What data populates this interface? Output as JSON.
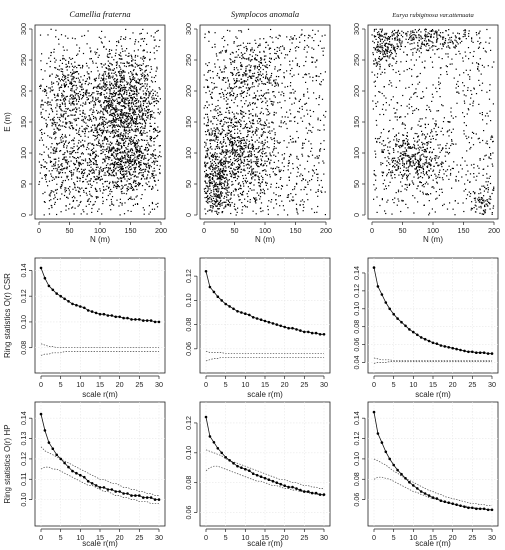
{
  "row_labels": {
    "csr_ylabel": "Ring statistics O(r)  CSR",
    "hp_ylabel": "Ring statistics O(r)  HP"
  },
  "chart_data": [
    {
      "type": "scatter",
      "row": 0,
      "col": 0,
      "title": "Camellia fraterna",
      "xlabel": "N (m)",
      "ylabel": "E (m)",
      "xlim": [
        0,
        200
      ],
      "ylim": [
        0,
        300
      ],
      "xticks": [
        0,
        50,
        100,
        150,
        200
      ],
      "yticks": [
        0,
        50,
        100,
        150,
        200,
        250,
        300
      ],
      "n_points": 3200,
      "density_clusters": [
        {
          "x": 140,
          "y": 175,
          "sx": 32,
          "sy": 45,
          "w": 0.4
        },
        {
          "x": 140,
          "y": 80,
          "sx": 35,
          "sy": 30,
          "w": 0.2
        },
        {
          "x": 45,
          "y": 85,
          "sx": 30,
          "sy": 45,
          "w": 0.15
        },
        {
          "x": 50,
          "y": 205,
          "sx": 25,
          "sy": 30,
          "w": 0.1
        }
      ]
    },
    {
      "type": "scatter",
      "row": 0,
      "col": 1,
      "title": "Symplocos anomala",
      "xlabel": "N (m)",
      "ylabel": "",
      "xlim": [
        0,
        200
      ],
      "ylim": [
        0,
        300
      ],
      "xticks": [
        0,
        50,
        100,
        150,
        200
      ],
      "yticks": [
        0,
        50,
        100,
        150,
        200,
        250,
        300
      ],
      "n_points": 2300,
      "density_clusters": [
        {
          "x": 50,
          "y": 100,
          "sx": 40,
          "sy": 45,
          "w": 0.45
        },
        {
          "x": 80,
          "y": 230,
          "sx": 30,
          "sy": 25,
          "w": 0.12
        },
        {
          "x": 20,
          "y": 40,
          "sx": 15,
          "sy": 25,
          "w": 0.1
        }
      ]
    },
    {
      "type": "scatter",
      "row": 0,
      "col": 2,
      "title": "Eurya rubiginosa var.attenuata",
      "xlabel": "N (m)",
      "ylabel": "",
      "xlim": [
        0,
        200
      ],
      "ylim": [
        0,
        300
      ],
      "xticks": [
        0,
        50,
        100,
        150,
        200
      ],
      "yticks": [
        0,
        50,
        100,
        150,
        200,
        250,
        300
      ],
      "n_points": 1600,
      "density_clusters": [
        {
          "x": 20,
          "y": 270,
          "sx": 15,
          "sy": 20,
          "w": 0.14
        },
        {
          "x": 100,
          "y": 285,
          "sx": 40,
          "sy": 10,
          "w": 0.14
        },
        {
          "x": 70,
          "y": 90,
          "sx": 30,
          "sy": 25,
          "w": 0.25
        },
        {
          "x": 185,
          "y": 15,
          "sx": 10,
          "sy": 15,
          "w": 0.06
        }
      ]
    },
    {
      "type": "line",
      "row": 1,
      "col": 0,
      "xlabel": "scale r(m)",
      "ylabel": "Ring statistics O(r)  CSR",
      "xlim": [
        0,
        30
      ],
      "ylim": [
        0.065,
        0.145
      ],
      "xticks": [
        0,
        5,
        10,
        15,
        20,
        25,
        30
      ],
      "yticks": [
        0.08,
        0.1,
        0.12,
        0.14
      ],
      "x": [
        0,
        1,
        2,
        3,
        4,
        5,
        6,
        7,
        8,
        9,
        10,
        11,
        12,
        13,
        14,
        15,
        16,
        17,
        18,
        19,
        20,
        21,
        22,
        23,
        24,
        25,
        26,
        27,
        28,
        29,
        30
      ],
      "observed": [
        0.142,
        0.134,
        0.128,
        0.125,
        0.122,
        0.12,
        0.118,
        0.116,
        0.114,
        0.113,
        0.112,
        0.111,
        0.109,
        0.108,
        0.107,
        0.106,
        0.106,
        0.105,
        0.105,
        0.104,
        0.104,
        0.103,
        0.103,
        0.102,
        0.102,
        0.102,
        0.101,
        0.101,
        0.101,
        0.1,
        0.1
      ],
      "env_upper": [
        0.083,
        0.082,
        0.081,
        0.081,
        0.08,
        0.08,
        0.08,
        0.08,
        0.08,
        0.08,
        0.08,
        0.08,
        0.08,
        0.08,
        0.08,
        0.08,
        0.08,
        0.08,
        0.08,
        0.08,
        0.08,
        0.08,
        0.08,
        0.08,
        0.08,
        0.08,
        0.08,
        0.08,
        0.08,
        0.08,
        0.08
      ],
      "env_lower": [
        0.074,
        0.075,
        0.075,
        0.076,
        0.076,
        0.076,
        0.077,
        0.077,
        0.077,
        0.077,
        0.077,
        0.077,
        0.077,
        0.077,
        0.077,
        0.077,
        0.077,
        0.077,
        0.077,
        0.077,
        0.077,
        0.077,
        0.077,
        0.077,
        0.077,
        0.077,
        0.077,
        0.077,
        0.077,
        0.077,
        0.077
      ]
    },
    {
      "type": "line",
      "row": 1,
      "col": 1,
      "xlabel": "scale r(m)",
      "ylabel": "",
      "xlim": [
        0,
        30
      ],
      "ylim": [
        0.045,
        0.13
      ],
      "xticks": [
        0,
        5,
        10,
        15,
        20,
        25,
        30
      ],
      "yticks": [
        0.06,
        0.08,
        0.1,
        0.12
      ],
      "x": [
        0,
        1,
        2,
        3,
        4,
        5,
        6,
        7,
        8,
        9,
        10,
        11,
        12,
        13,
        14,
        15,
        16,
        17,
        18,
        19,
        20,
        21,
        22,
        23,
        24,
        25,
        26,
        27,
        28,
        29,
        30
      ],
      "observed": [
        0.124,
        0.111,
        0.107,
        0.103,
        0.1,
        0.097,
        0.095,
        0.093,
        0.091,
        0.09,
        0.089,
        0.088,
        0.086,
        0.085,
        0.084,
        0.083,
        0.082,
        0.081,
        0.08,
        0.079,
        0.078,
        0.077,
        0.077,
        0.076,
        0.075,
        0.074,
        0.074,
        0.073,
        0.073,
        0.072,
        0.072
      ],
      "env_upper": [
        0.058,
        0.057,
        0.057,
        0.057,
        0.057,
        0.056,
        0.056,
        0.056,
        0.056,
        0.056,
        0.056,
        0.056,
        0.056,
        0.056,
        0.056,
        0.056,
        0.056,
        0.056,
        0.056,
        0.056,
        0.056,
        0.056,
        0.056,
        0.056,
        0.056,
        0.056,
        0.056,
        0.056,
        0.056,
        0.056,
        0.056
      ],
      "env_lower": [
        0.05,
        0.051,
        0.052,
        0.052,
        0.053,
        0.053,
        0.053,
        0.053,
        0.053,
        0.053,
        0.053,
        0.053,
        0.053,
        0.053,
        0.053,
        0.053,
        0.053,
        0.053,
        0.053,
        0.053,
        0.053,
        0.053,
        0.053,
        0.053,
        0.053,
        0.053,
        0.053,
        0.053,
        0.053,
        0.053,
        0.053
      ]
    },
    {
      "type": "line",
      "row": 1,
      "col": 2,
      "xlabel": "scale r(m)",
      "ylabel": "",
      "xlim": [
        0,
        30
      ],
      "ylim": [
        0.035,
        0.15
      ],
      "xticks": [
        0,
        5,
        10,
        15,
        20,
        25,
        30
      ],
      "yticks": [
        0.04,
        0.06,
        0.08,
        0.1,
        0.12,
        0.14
      ],
      "x": [
        0,
        1,
        2,
        3,
        4,
        5,
        6,
        7,
        8,
        9,
        10,
        11,
        12,
        13,
        14,
        15,
        16,
        17,
        18,
        19,
        20,
        21,
        22,
        23,
        24,
        25,
        26,
        27,
        28,
        29,
        30
      ],
      "observed": [
        0.146,
        0.125,
        0.116,
        0.107,
        0.1,
        0.094,
        0.089,
        0.085,
        0.081,
        0.077,
        0.074,
        0.071,
        0.068,
        0.066,
        0.064,
        0.062,
        0.061,
        0.059,
        0.058,
        0.057,
        0.056,
        0.055,
        0.054,
        0.053,
        0.052,
        0.052,
        0.051,
        0.051,
        0.051,
        0.05,
        0.05
      ],
      "env_upper": [
        0.045,
        0.044,
        0.043,
        0.043,
        0.043,
        0.042,
        0.042,
        0.042,
        0.042,
        0.042,
        0.042,
        0.042,
        0.042,
        0.042,
        0.042,
        0.042,
        0.042,
        0.042,
        0.042,
        0.042,
        0.042,
        0.042,
        0.042,
        0.042,
        0.042,
        0.042,
        0.042,
        0.042,
        0.042,
        0.042,
        0.042
      ],
      "env_lower": [
        0.039,
        0.04,
        0.04,
        0.04,
        0.041,
        0.041,
        0.041,
        0.041,
        0.041,
        0.041,
        0.041,
        0.041,
        0.041,
        0.041,
        0.041,
        0.041,
        0.041,
        0.041,
        0.041,
        0.041,
        0.041,
        0.041,
        0.041,
        0.041,
        0.041,
        0.041,
        0.041,
        0.041,
        0.041,
        0.041,
        0.041
      ]
    },
    {
      "type": "line",
      "row": 2,
      "col": 0,
      "xlabel": "scale r(m)",
      "ylabel": "Ring statistics O(r)  HP",
      "xlim": [
        0,
        30
      ],
      "ylim": [
        0.09,
        0.145
      ],
      "xticks": [
        0,
        5,
        10,
        15,
        20,
        25,
        30
      ],
      "yticks": [
        0.1,
        0.11,
        0.12,
        0.13,
        0.14
      ],
      "x": [
        0,
        1,
        2,
        3,
        4,
        5,
        6,
        7,
        8,
        9,
        10,
        11,
        12,
        13,
        14,
        15,
        16,
        17,
        18,
        19,
        20,
        21,
        22,
        23,
        24,
        25,
        26,
        27,
        28,
        29,
        30
      ],
      "observed": [
        0.142,
        0.134,
        0.128,
        0.125,
        0.122,
        0.12,
        0.118,
        0.116,
        0.114,
        0.113,
        0.112,
        0.111,
        0.109,
        0.108,
        0.107,
        0.106,
        0.106,
        0.105,
        0.105,
        0.104,
        0.104,
        0.103,
        0.103,
        0.102,
        0.102,
        0.102,
        0.101,
        0.101,
        0.101,
        0.1,
        0.1
      ],
      "env_upper": [
        0.126,
        0.124,
        0.123,
        0.122,
        0.121,
        0.12,
        0.119,
        0.118,
        0.117,
        0.116,
        0.115,
        0.114,
        0.113,
        0.112,
        0.111,
        0.11,
        0.11,
        0.109,
        0.108,
        0.108,
        0.107,
        0.106,
        0.106,
        0.105,
        0.105,
        0.104,
        0.104,
        0.103,
        0.103,
        0.102,
        0.102
      ],
      "env_lower": [
        0.115,
        0.116,
        0.116,
        0.115,
        0.115,
        0.114,
        0.113,
        0.112,
        0.111,
        0.11,
        0.109,
        0.108,
        0.107,
        0.107,
        0.106,
        0.105,
        0.104,
        0.104,
        0.103,
        0.102,
        0.102,
        0.101,
        0.101,
        0.1,
        0.1,
        0.099,
        0.099,
        0.099,
        0.098,
        0.098,
        0.098
      ]
    },
    {
      "type": "line",
      "row": 2,
      "col": 1,
      "xlabel": "scale r(m)",
      "ylabel": "",
      "xlim": [
        0,
        30
      ],
      "ylim": [
        0.055,
        0.13
      ],
      "xticks": [
        0,
        5,
        10,
        15,
        20,
        25,
        30
      ],
      "yticks": [
        0.06,
        0.08,
        0.1,
        0.12
      ],
      "x": [
        0,
        1,
        2,
        3,
        4,
        5,
        6,
        7,
        8,
        9,
        10,
        11,
        12,
        13,
        14,
        15,
        16,
        17,
        18,
        19,
        20,
        21,
        22,
        23,
        24,
        25,
        26,
        27,
        28,
        29,
        30
      ],
      "observed": [
        0.124,
        0.111,
        0.107,
        0.103,
        0.1,
        0.097,
        0.095,
        0.093,
        0.091,
        0.09,
        0.089,
        0.088,
        0.086,
        0.085,
        0.084,
        0.083,
        0.082,
        0.081,
        0.08,
        0.079,
        0.078,
        0.077,
        0.077,
        0.076,
        0.075,
        0.074,
        0.074,
        0.073,
        0.073,
        0.072,
        0.072
      ],
      "env_upper": [
        0.102,
        0.101,
        0.1,
        0.099,
        0.098,
        0.096,
        0.095,
        0.094,
        0.093,
        0.092,
        0.091,
        0.09,
        0.089,
        0.088,
        0.087,
        0.086,
        0.085,
        0.084,
        0.083,
        0.082,
        0.082,
        0.081,
        0.08,
        0.08,
        0.079,
        0.078,
        0.078,
        0.077,
        0.077,
        0.076,
        0.076
      ],
      "env_lower": [
        0.088,
        0.09,
        0.091,
        0.091,
        0.09,
        0.089,
        0.088,
        0.087,
        0.086,
        0.085,
        0.084,
        0.083,
        0.082,
        0.081,
        0.081,
        0.08,
        0.079,
        0.078,
        0.078,
        0.077,
        0.076,
        0.076,
        0.075,
        0.075,
        0.074,
        0.074,
        0.073,
        0.073,
        0.072,
        0.072,
        0.071
      ]
    },
    {
      "type": "line",
      "row": 2,
      "col": 2,
      "xlabel": "scale r(m)",
      "ylabel": "",
      "xlim": [
        0,
        30
      ],
      "ylim": [
        0.04,
        0.15
      ],
      "xticks": [
        0,
        5,
        10,
        15,
        20,
        25,
        30
      ],
      "yticks": [
        0.06,
        0.08,
        0.1,
        0.12,
        0.14
      ],
      "x": [
        0,
        1,
        2,
        3,
        4,
        5,
        6,
        7,
        8,
        9,
        10,
        11,
        12,
        13,
        14,
        15,
        16,
        17,
        18,
        19,
        20,
        21,
        22,
        23,
        24,
        25,
        26,
        27,
        28,
        29,
        30
      ],
      "observed": [
        0.146,
        0.125,
        0.116,
        0.107,
        0.1,
        0.094,
        0.089,
        0.085,
        0.081,
        0.077,
        0.074,
        0.071,
        0.068,
        0.066,
        0.064,
        0.062,
        0.061,
        0.059,
        0.058,
        0.057,
        0.056,
        0.055,
        0.054,
        0.053,
        0.052,
        0.052,
        0.051,
        0.051,
        0.051,
        0.05,
        0.05
      ],
      "env_upper": [
        0.1,
        0.098,
        0.096,
        0.094,
        0.091,
        0.088,
        0.086,
        0.083,
        0.081,
        0.079,
        0.077,
        0.075,
        0.073,
        0.071,
        0.069,
        0.068,
        0.066,
        0.065,
        0.063,
        0.062,
        0.061,
        0.06,
        0.059,
        0.058,
        0.057,
        0.056,
        0.056,
        0.055,
        0.055,
        0.054,
        0.054
      ],
      "env_lower": [
        0.08,
        0.082,
        0.082,
        0.081,
        0.08,
        0.078,
        0.076,
        0.074,
        0.072,
        0.07,
        0.068,
        0.067,
        0.065,
        0.064,
        0.062,
        0.061,
        0.06,
        0.059,
        0.058,
        0.057,
        0.056,
        0.055,
        0.054,
        0.054,
        0.053,
        0.052,
        0.052,
        0.051,
        0.051,
        0.05,
        0.05
      ]
    }
  ]
}
